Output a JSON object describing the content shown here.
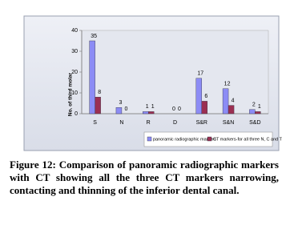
{
  "chart_data": {
    "type": "bar",
    "y_label": "No. of third molar",
    "categories": [
      "S",
      "N",
      "R",
      "D",
      "S&R",
      "S&N",
      "S&D"
    ],
    "series": [
      {
        "name": "panoramic radiographic markers",
        "color": "#8c8cf5",
        "values": [
          35,
          3,
          1,
          0,
          17,
          12,
          2
        ]
      },
      {
        "name": "CT markers-for all three N, C and T",
        "color": "#9b2f52",
        "values": [
          8,
          0,
          1,
          0,
          6,
          4,
          1
        ]
      }
    ],
    "ylim": [
      0,
      40
    ],
    "yticks": [
      0,
      10,
      20,
      30,
      40
    ],
    "grid": false,
    "legend": "bottom"
  },
  "caption": "Figure 12: Comparison of panoramic radiographic markers with CT showing all the three CT markers narrowing, contacting and thinning of the inferior dental canal."
}
